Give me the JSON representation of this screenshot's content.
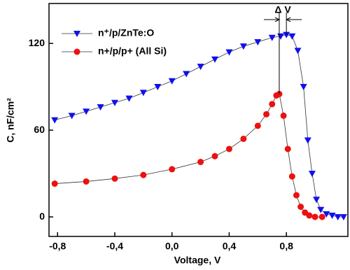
{
  "chart_data": {
    "type": "line",
    "xlabel": "Voltage, V",
    "ylabel": "C, nF/cm²",
    "annotation": "Δ V",
    "xlim": [
      -0.86,
      1.23
    ],
    "ylim": [
      -13.5,
      147.6
    ],
    "xticks": [
      {
        "value": -0.8,
        "label": "-0,8"
      },
      {
        "value": -0.4,
        "label": "-0,4"
      },
      {
        "value": 0.0,
        "label": "0,0"
      },
      {
        "value": 0.4,
        "label": "0,4"
      },
      {
        "value": 0.8,
        "label": "0,8"
      }
    ],
    "yticks": [
      0,
      60,
      120
    ],
    "legend": "upper-left",
    "series": [
      {
        "name": "n⁺/p/ZnTe:O",
        "color": "#1010ee",
        "marker": "triangle-down",
        "x": [
          -0.82,
          -0.7,
          -0.6,
          -0.5,
          -0.4,
          -0.3,
          -0.2,
          -0.1,
          0.0,
          0.1,
          0.2,
          0.3,
          0.4,
          0.5,
          0.6,
          0.7,
          0.76,
          0.8,
          0.84,
          0.88,
          0.92,
          0.95,
          0.98,
          1.01,
          1.04,
          1.08,
          1.12,
          1.16,
          1.2
        ],
        "values": [
          67,
          70,
          73,
          76,
          79,
          82,
          86,
          90,
          94,
          99,
          104,
          109,
          114,
          118,
          121,
          124,
          125,
          126,
          125,
          115,
          90,
          53,
          30,
          12,
          5,
          2,
          1,
          0,
          0
        ]
      },
      {
        "name": "n+/p/p+ (All Si)",
        "color": "#ee1010",
        "marker": "circle",
        "x": [
          -0.82,
          -0.6,
          -0.4,
          -0.2,
          0.0,
          0.2,
          0.3,
          0.4,
          0.5,
          0.6,
          0.66,
          0.7,
          0.73,
          0.75,
          0.78,
          0.81,
          0.84,
          0.87,
          0.9,
          0.93,
          0.96,
          1.0,
          1.05
        ],
        "values": [
          23,
          24.5,
          26.5,
          29,
          33,
          38,
          42,
          47,
          54,
          63,
          71,
          78,
          84,
          85,
          70,
          47,
          28,
          15,
          7,
          3,
          1,
          0,
          0
        ]
      }
    ]
  }
}
